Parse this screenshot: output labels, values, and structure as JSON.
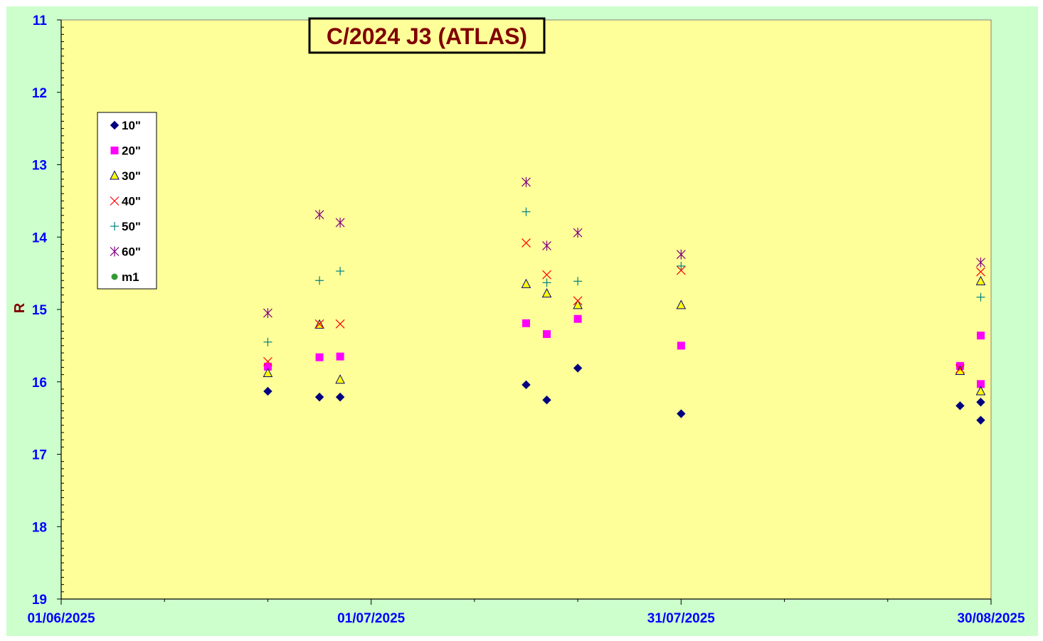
{
  "chart_data": {
    "type": "scatter",
    "title": "C/2024 J3 (ATLAS)",
    "ylabel": "R",
    "xlabel": "",
    "x_axis": {
      "type": "date",
      "min": "2025-06-01",
      "max": "2025-08-30",
      "tick_labels": [
        "01/06/2025",
        "01/07/2025",
        "31/07/2025",
        "30/08/2025"
      ]
    },
    "y_axis": {
      "min": 11,
      "max": 19,
      "reversed": true,
      "tick_labels": [
        "11",
        "12",
        "13",
        "14",
        "15",
        "16",
        "17",
        "18",
        "19"
      ]
    },
    "grid": false,
    "legend_position": "left",
    "colors": {
      "outer_background": "#ccffcc",
      "plot_background": "#ffff99",
      "axis_text": "#0000ff",
      "title_text": "#800000"
    },
    "series": [
      {
        "name": "10\"",
        "marker": "diamond",
        "color": "#000080",
        "points": [
          [
            "2025-06-21",
            16.13
          ],
          [
            "2025-06-26",
            16.21
          ],
          [
            "2025-06-28",
            16.21
          ],
          [
            "2025-07-16",
            16.04
          ],
          [
            "2025-07-18",
            16.25
          ],
          [
            "2025-07-21",
            15.81
          ],
          [
            "2025-07-31",
            16.44
          ],
          [
            "2025-08-27",
            16.33
          ],
          [
            "2025-08-29",
            16.28
          ],
          [
            "2025-08-29",
            16.53
          ]
        ]
      },
      {
        "name": "20\"",
        "marker": "square",
        "color": "#ff00ff",
        "points": [
          [
            "2025-06-21",
            15.79
          ],
          [
            "2025-06-26",
            15.66
          ],
          [
            "2025-06-28",
            15.65
          ],
          [
            "2025-07-16",
            15.19
          ],
          [
            "2025-07-18",
            15.34
          ],
          [
            "2025-07-21",
            15.13
          ],
          [
            "2025-07-31",
            15.5
          ],
          [
            "2025-08-27",
            15.78
          ],
          [
            "2025-08-29",
            16.03
          ],
          [
            "2025-08-29",
            15.36
          ]
        ]
      },
      {
        "name": "30\"",
        "marker": "triangle",
        "color": "#ffff00",
        "stroke": "#000080",
        "points": [
          [
            "2025-06-21",
            15.88
          ],
          [
            "2025-06-26",
            15.21
          ],
          [
            "2025-06-28",
            15.97
          ],
          [
            "2025-07-16",
            14.65
          ],
          [
            "2025-07-18",
            14.78
          ],
          [
            "2025-07-21",
            14.94
          ],
          [
            "2025-07-31",
            14.94
          ],
          [
            "2025-08-27",
            15.85
          ],
          [
            "2025-08-29",
            16.13
          ],
          [
            "2025-08-29",
            14.61
          ]
        ]
      },
      {
        "name": "40\"",
        "marker": "x",
        "color": "#ff0000",
        "points": [
          [
            "2025-06-21",
            15.72
          ],
          [
            "2025-06-26",
            15.2
          ],
          [
            "2025-06-28",
            15.2
          ],
          [
            "2025-07-16",
            14.08
          ],
          [
            "2025-07-18",
            14.52
          ],
          [
            "2025-07-21",
            14.88
          ],
          [
            "2025-07-31",
            14.46
          ],
          [
            "2025-08-27",
            15.82
          ],
          [
            "2025-08-29",
            14.48
          ]
        ]
      },
      {
        "name": "50\"",
        "marker": "plus",
        "color": "#008080",
        "points": [
          [
            "2025-06-21",
            15.45
          ],
          [
            "2025-06-26",
            14.6
          ],
          [
            "2025-06-28",
            14.47
          ],
          [
            "2025-07-16",
            13.65
          ],
          [
            "2025-07-18",
            14.63
          ],
          [
            "2025-07-21",
            14.61
          ],
          [
            "2025-07-31",
            14.4
          ],
          [
            "2025-08-29",
            14.83
          ]
        ]
      },
      {
        "name": "60\"",
        "marker": "star",
        "color": "#800080",
        "points": [
          [
            "2025-06-21",
            15.05
          ],
          [
            "2025-06-26",
            13.69
          ],
          [
            "2025-06-28",
            13.8
          ],
          [
            "2025-07-16",
            13.24
          ],
          [
            "2025-07-18",
            14.12
          ],
          [
            "2025-07-21",
            13.94
          ],
          [
            "2025-07-31",
            14.24
          ],
          [
            "2025-08-29",
            14.35
          ]
        ]
      },
      {
        "name": "m1",
        "marker": "circle",
        "color": "#339933",
        "points": []
      }
    ]
  }
}
